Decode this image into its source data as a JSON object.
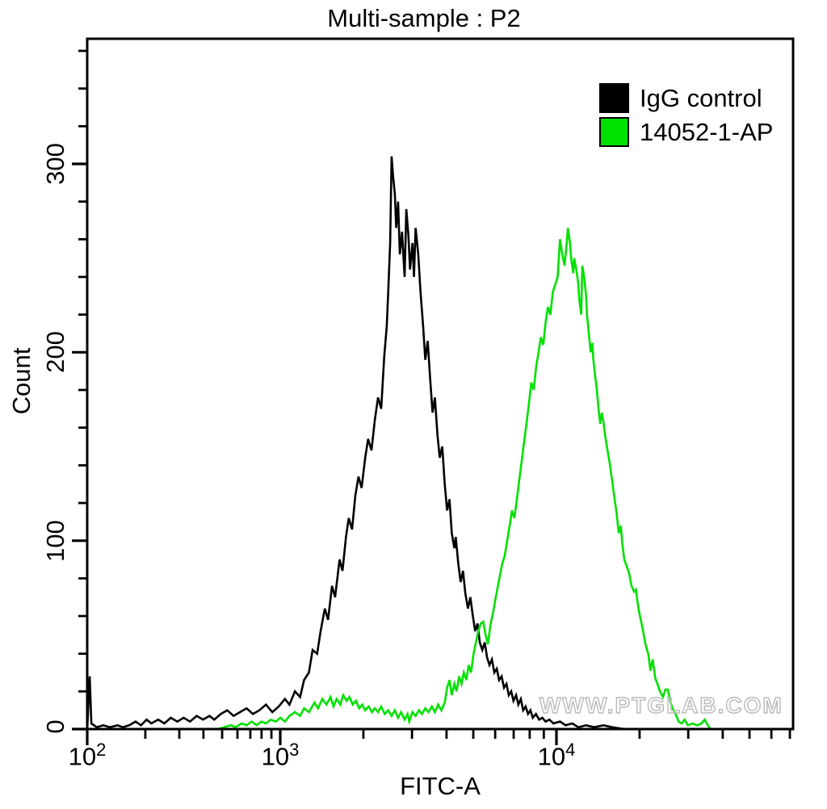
{
  "title": "Multi-sample : P2",
  "watermark": "WWW.PTGLAB.COM",
  "legend": [
    {
      "label": "IgG control",
      "color": "#000000"
    },
    {
      "label": "14052-1-AP",
      "color": "#00e100"
    }
  ],
  "chart_data": {
    "type": "line",
    "subtype": "flow-cytometry-histogram-overlay",
    "title": "Multi-sample : P2",
    "xlabel": "FITC-A",
    "ylabel": "Count",
    "x_scale": "log",
    "xlim": [
      100,
      72000
    ],
    "ylim": [
      0,
      366
    ],
    "grid": false,
    "legend_position": "top-right",
    "x_ticks": [
      {
        "label": "10",
        "exp": "2",
        "value": 100
      },
      {
        "label": "10",
        "exp": "3",
        "value": 1000
      },
      {
        "label": "10",
        "exp": "4",
        "value": 10000
      }
    ],
    "y_major_ticks": [
      0,
      100,
      200,
      300
    ],
    "y_minor_step": 20,
    "series": [
      {
        "name": "IgG control",
        "color": "#000000",
        "points": [
          [
            100,
            0
          ],
          [
            103,
            28
          ],
          [
            105,
            3
          ],
          [
            112,
            1
          ],
          [
            121,
            2
          ],
          [
            131,
            1
          ],
          [
            144,
            2
          ],
          [
            153,
            1
          ],
          [
            165,
            2
          ],
          [
            178,
            4
          ],
          [
            190,
            2
          ],
          [
            203,
            5
          ],
          [
            215,
            3
          ],
          [
            233,
            5
          ],
          [
            251,
            3
          ],
          [
            271,
            6
          ],
          [
            293,
            4
          ],
          [
            316,
            6
          ],
          [
            341,
            4
          ],
          [
            369,
            7
          ],
          [
            398,
            5
          ],
          [
            430,
            7
          ],
          [
            455,
            5
          ],
          [
            492,
            8
          ],
          [
            531,
            10
          ],
          [
            573,
            7
          ],
          [
            619,
            9
          ],
          [
            669,
            11
          ],
          [
            722,
            8
          ],
          [
            780,
            10
          ],
          [
            843,
            13
          ],
          [
            910,
            9
          ],
          [
            983,
            12
          ],
          [
            1040,
            16
          ],
          [
            1080,
            13
          ],
          [
            1130,
            20
          ],
          [
            1180,
            17
          ],
          [
            1220,
            26
          ],
          [
            1270,
            30
          ],
          [
            1310,
            42
          ],
          [
            1360,
            40
          ],
          [
            1400,
            52
          ],
          [
            1450,
            64
          ],
          [
            1490,
            58
          ],
          [
            1540,
            76
          ],
          [
            1580,
            70
          ],
          [
            1640,
            90
          ],
          [
            1680,
            84
          ],
          [
            1730,
            102
          ],
          [
            1770,
            112
          ],
          [
            1820,
            106
          ],
          [
            1870,
            124
          ],
          [
            1920,
            134
          ],
          [
            1970,
            128
          ],
          [
            2030,
            144
          ],
          [
            2080,
            154
          ],
          [
            2140,
            148
          ],
          [
            2200,
            164
          ],
          [
            2260,
            176
          ],
          [
            2320,
            170
          ],
          [
            2380,
            198
          ],
          [
            2430,
            214
          ],
          [
            2460,
            232
          ],
          [
            2500,
            258
          ],
          [
            2530,
            304
          ],
          [
            2560,
            294
          ],
          [
            2600,
            284
          ],
          [
            2630,
            266
          ],
          [
            2670,
            280
          ],
          [
            2710,
            252
          ],
          [
            2760,
            264
          ],
          [
            2820,
            240
          ],
          [
            2860,
            276
          ],
          [
            2910,
            262
          ],
          [
            2950,
            244
          ],
          [
            3010,
            258
          ],
          [
            3050,
            240
          ],
          [
            3090,
            266
          ],
          [
            3160,
            252
          ],
          [
            3220,
            232
          ],
          [
            3290,
            214
          ],
          [
            3350,
            196
          ],
          [
            3420,
            206
          ],
          [
            3490,
            186
          ],
          [
            3560,
            168
          ],
          [
            3630,
            176
          ],
          [
            3710,
            156
          ],
          [
            3780,
            144
          ],
          [
            3860,
            150
          ],
          [
            3940,
            130
          ],
          [
            4020,
            116
          ],
          [
            4100,
            122
          ],
          [
            4180,
            104
          ],
          [
            4270,
            96
          ],
          [
            4320,
            102
          ],
          [
            4410,
            88
          ],
          [
            4500,
            78
          ],
          [
            4590,
            84
          ],
          [
            4680,
            72
          ],
          [
            4780,
            64
          ],
          [
            4880,
            70
          ],
          [
            4980,
            60
          ],
          [
            5080,
            52
          ],
          [
            5180,
            56
          ],
          [
            5280,
            46
          ],
          [
            5390,
            42
          ],
          [
            5500,
            46
          ],
          [
            5610,
            38
          ],
          [
            5720,
            34
          ],
          [
            5840,
            37
          ],
          [
            5960,
            30
          ],
          [
            6080,
            32
          ],
          [
            6200,
            26
          ],
          [
            6330,
            28
          ],
          [
            6460,
            22
          ],
          [
            6590,
            24
          ],
          [
            6720,
            18
          ],
          [
            6860,
            20
          ],
          [
            6990,
            15
          ],
          [
            7140,
            18
          ],
          [
            7280,
            13
          ],
          [
            7430,
            16
          ],
          [
            7580,
            10
          ],
          [
            7730,
            12
          ],
          [
            7890,
            8
          ],
          [
            8050,
            10
          ],
          [
            8210,
            6
          ],
          [
            8430,
            8
          ],
          [
            8660,
            5
          ],
          [
            8890,
            6
          ],
          [
            9130,
            4
          ],
          [
            9430,
            5
          ],
          [
            9750,
            3
          ],
          [
            10300,
            4
          ],
          [
            10800,
            2
          ],
          [
            11400,
            3
          ],
          [
            12000,
            1
          ],
          [
            12800,
            2
          ],
          [
            13700,
            1
          ],
          [
            14800,
            2
          ],
          [
            15900,
            1
          ],
          [
            17600,
            0
          ],
          [
            72000,
            0
          ]
        ]
      },
      {
        "name": "14052-1-AP",
        "color": "#00e100",
        "points": [
          [
            473,
            0
          ],
          [
            512,
            1
          ],
          [
            554,
            2
          ],
          [
            588,
            1
          ],
          [
            631,
            3
          ],
          [
            669,
            2
          ],
          [
            710,
            4
          ],
          [
            753,
            2
          ],
          [
            800,
            4
          ],
          [
            843,
            3
          ],
          [
            894,
            5
          ],
          [
            949,
            4
          ],
          [
            1000,
            6
          ],
          [
            1040,
            4
          ],
          [
            1080,
            7
          ],
          [
            1130,
            9
          ],
          [
            1180,
            7
          ],
          [
            1220,
            11
          ],
          [
            1270,
            9
          ],
          [
            1330,
            14
          ],
          [
            1370,
            11
          ],
          [
            1420,
            16
          ],
          [
            1470,
            13
          ],
          [
            1520,
            17
          ],
          [
            1560,
            12
          ],
          [
            1600,
            16
          ],
          [
            1650,
            13
          ],
          [
            1690,
            18
          ],
          [
            1740,
            15
          ],
          [
            1780,
            17
          ],
          [
            1830,
            13
          ],
          [
            1880,
            15
          ],
          [
            1930,
            11
          ],
          [
            1980,
            13
          ],
          [
            2030,
            10
          ],
          [
            2090,
            12
          ],
          [
            2150,
            9
          ],
          [
            2200,
            11
          ],
          [
            2260,
            9
          ],
          [
            2320,
            12
          ],
          [
            2390,
            8
          ],
          [
            2460,
            10
          ],
          [
            2530,
            7
          ],
          [
            2600,
            10
          ],
          [
            2670,
            6
          ],
          [
            2740,
            9
          ],
          [
            2820,
            5
          ],
          [
            2890,
            8
          ],
          [
            2930,
            4
          ],
          [
            3010,
            9
          ],
          [
            3090,
            7
          ],
          [
            3180,
            10
          ],
          [
            3260,
            8
          ],
          [
            3350,
            11
          ],
          [
            3440,
            9
          ],
          [
            3540,
            12
          ],
          [
            3630,
            9
          ],
          [
            3730,
            13
          ],
          [
            3830,
            10
          ],
          [
            3940,
            14
          ],
          [
            4020,
            22
          ],
          [
            4100,
            26
          ],
          [
            4180,
            18
          ],
          [
            4270,
            24
          ],
          [
            4350,
            20
          ],
          [
            4440,
            28
          ],
          [
            4530,
            24
          ],
          [
            4620,
            30
          ],
          [
            4720,
            26
          ],
          [
            4810,
            34
          ],
          [
            4910,
            30
          ],
          [
            5010,
            40
          ],
          [
            5110,
            46
          ],
          [
            5210,
            52
          ],
          [
            5320,
            56
          ],
          [
            5430,
            57
          ],
          [
            5540,
            50
          ],
          [
            5650,
            45
          ],
          [
            5760,
            55
          ],
          [
            5880,
            61
          ],
          [
            6000,
            68
          ],
          [
            6120,
            75
          ],
          [
            6250,
            82
          ],
          [
            6370,
            88
          ],
          [
            6500,
            92
          ],
          [
            6630,
            100
          ],
          [
            6770,
            108
          ],
          [
            6900,
            116
          ],
          [
            7040,
            112
          ],
          [
            7190,
            122
          ],
          [
            7330,
            132
          ],
          [
            7480,
            142
          ],
          [
            7630,
            152
          ],
          [
            7790,
            162
          ],
          [
            7940,
            172
          ],
          [
            8110,
            184
          ],
          [
            8270,
            180
          ],
          [
            8440,
            192
          ],
          [
            8610,
            200
          ],
          [
            8780,
            208
          ],
          [
            8960,
            204
          ],
          [
            9140,
            216
          ],
          [
            9320,
            224
          ],
          [
            9510,
            220
          ],
          [
            9700,
            232
          ],
          [
            10100,
            240
          ],
          [
            10300,
            260
          ],
          [
            10500,
            252
          ],
          [
            10700,
            246
          ],
          [
            10900,
            258
          ],
          [
            11000,
            266
          ],
          [
            11200,
            258
          ],
          [
            11300,
            250
          ],
          [
            11500,
            242
          ],
          [
            11600,
            250
          ],
          [
            11800,
            244
          ],
          [
            12000,
            236
          ],
          [
            12100,
            228
          ],
          [
            12300,
            220
          ],
          [
            12400,
            246
          ],
          [
            12600,
            240
          ],
          [
            12800,
            230
          ],
          [
            12900,
            220
          ],
          [
            13100,
            210
          ],
          [
            13300,
            200
          ],
          [
            13500,
            205
          ],
          [
            13600,
            196
          ],
          [
            13800,
            188
          ],
          [
            14000,
            180
          ],
          [
            14200,
            170
          ],
          [
            14400,
            162
          ],
          [
            14600,
            168
          ],
          [
            14800,
            163
          ],
          [
            15000,
            156
          ],
          [
            15300,
            148
          ],
          [
            15600,
            141
          ],
          [
            15900,
            132
          ],
          [
            16200,
            123
          ],
          [
            16500,
            115
          ],
          [
            16800,
            104
          ],
          [
            17100,
            108
          ],
          [
            17300,
            99
          ],
          [
            17600,
            90
          ],
          [
            18000,
            86
          ],
          [
            18300,
            83
          ],
          [
            18700,
            76
          ],
          [
            19100,
            73
          ],
          [
            19400,
            74
          ],
          [
            19800,
            64
          ],
          [
            20200,
            58
          ],
          [
            20600,
            52
          ],
          [
            21000,
            45
          ],
          [
            21500,
            40
          ],
          [
            21900,
            31
          ],
          [
            22300,
            37
          ],
          [
            22800,
            27
          ],
          [
            23200,
            24
          ],
          [
            23700,
            20
          ],
          [
            24300,
            17
          ],
          [
            24800,
            21
          ],
          [
            25300,
            21
          ],
          [
            25800,
            15
          ],
          [
            26300,
            11
          ],
          [
            27000,
            8
          ],
          [
            27700,
            4
          ],
          [
            28400,
            3
          ],
          [
            29100,
            5
          ],
          [
            29900,
            2
          ],
          [
            31100,
            3
          ],
          [
            32300,
            2
          ],
          [
            33500,
            3
          ],
          [
            34400,
            5
          ],
          [
            35300,
            2
          ],
          [
            36200,
            0
          ],
          [
            72000,
            0
          ]
        ]
      }
    ]
  }
}
